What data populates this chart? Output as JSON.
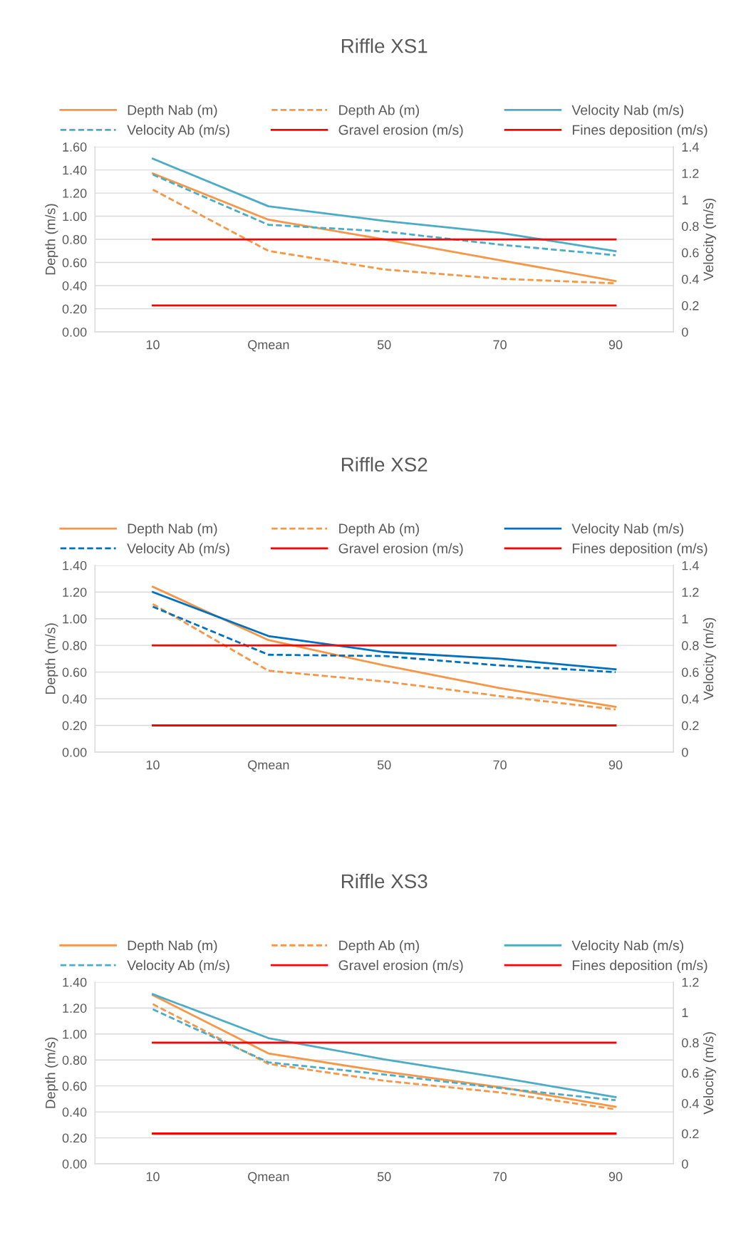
{
  "chart_data": [
    {
      "type": "line",
      "title": "Riffle XS1",
      "ylabel": "Depth (m/s)",
      "y2label": "Velocity (m/s)",
      "categories": [
        "10",
        "Qmean",
        "50",
        "70",
        "90"
      ],
      "grid": "y",
      "legend": "top",
      "ylim": [
        0,
        1.6
      ],
      "yticks": [
        {
          "value": 0,
          "label": "0.00"
        },
        {
          "value": 0.2,
          "label": "0.20"
        },
        {
          "value": 0.4,
          "label": "0.40"
        },
        {
          "value": 0.6,
          "label": "0.60"
        },
        {
          "value": 0.8,
          "label": "0.80"
        },
        {
          "value": 1.0,
          "label": "1.00"
        },
        {
          "value": 1.2,
          "label": "1.20"
        },
        {
          "value": 1.4,
          "label": "1.40"
        },
        {
          "value": 1.6,
          "label": "1.60"
        }
      ],
      "y2lim": [
        0,
        1.4
      ],
      "y2ticks": [
        0,
        0.2,
        0.4,
        0.6,
        0.8,
        1,
        1.2,
        1.4
      ],
      "series": [
        {
          "name": "Depth Nab (m)",
          "color": "#f79646",
          "line_style": "solid",
          "values": [
            1.37,
            0.97,
            0.8,
            0.62,
            0.44
          ]
        },
        {
          "name": "Depth Ab (m)",
          "color": "#f79646",
          "line_style": "dashed",
          "values": [
            1.23,
            0.7,
            0.54,
            0.46,
            0.42
          ]
        },
        {
          "name": "Velocity Nab (m/s)",
          "color": "#4bacc6",
          "line_style": "solid",
          "axis": "y2",
          "values": [
            1.31,
            0.95,
            0.84,
            0.75,
            0.61
          ]
        },
        {
          "name": "Velocity Ab (m/s)",
          "color": "#4bacc6",
          "line_style": "dashed",
          "axis": "y2",
          "values": [
            1.19,
            0.81,
            0.76,
            0.66,
            0.58
          ]
        },
        {
          "name": "Gravel erosion (m/s)",
          "color": "#ff0000",
          "line_style": "solid",
          "axis": "y2",
          "values": [
            0.7,
            0.7,
            0.7,
            0.7,
            0.7
          ]
        },
        {
          "name": "Fines deposition (m/s)",
          "color": "#ff0000",
          "line_style": "solid",
          "axis": "y2",
          "values": [
            0.2,
            0.2,
            0.2,
            0.2,
            0.2
          ]
        }
      ]
    },
    {
      "type": "line",
      "title": "Riffle XS2",
      "ylabel": "Depth (m/s)",
      "y2label": "Velocity (m/s)",
      "categories": [
        "10",
        "Qmean",
        "50",
        "70",
        "90"
      ],
      "grid": "y",
      "legend": "top",
      "ylim": [
        0,
        1.4
      ],
      "yticks": [
        {
          "value": 0,
          "label": "0.00"
        },
        {
          "value": 0.2,
          "label": "0.20"
        },
        {
          "value": 0.4,
          "label": "0.40"
        },
        {
          "value": 0.6,
          "label": "0.60"
        },
        {
          "value": 0.8,
          "label": "0.80"
        },
        {
          "value": 1.0,
          "label": "1.00"
        },
        {
          "value": 1.2,
          "label": "1.20"
        },
        {
          "value": 1.4,
          "label": "1.40"
        }
      ],
      "y2lim": [
        0,
        1.4
      ],
      "y2ticks": [
        0,
        0.2,
        0.4,
        0.6,
        0.8,
        1,
        1.2,
        1.4
      ],
      "series": [
        {
          "name": "Depth Nab (m)",
          "color": "#f79646",
          "line_style": "solid",
          "values": [
            1.24,
            0.84,
            0.65,
            0.48,
            0.34
          ]
        },
        {
          "name": "Depth Ab (m)",
          "color": "#f79646",
          "line_style": "dashed",
          "values": [
            1.11,
            0.61,
            0.53,
            0.42,
            0.32
          ]
        },
        {
          "name": "Velocity Nab (m/s)",
          "color": "#0070c0",
          "line_style": "solid",
          "axis": "y2",
          "values": [
            1.2,
            0.87,
            0.75,
            0.7,
            0.62
          ]
        },
        {
          "name": "Velocity Ab (m/s)",
          "color": "#0070c0",
          "line_style": "dashed",
          "axis": "y2",
          "values": [
            1.09,
            0.73,
            0.72,
            0.65,
            0.6
          ]
        },
        {
          "name": "Gravel erosion (m/s)",
          "color": "#ff0000",
          "line_style": "solid",
          "axis": "y2",
          "values": [
            0.8,
            0.8,
            0.8,
            0.8,
            0.8
          ]
        },
        {
          "name": "Fines deposition (m/s)",
          "color": "#ff0000",
          "line_style": "solid",
          "axis": "y2",
          "values": [
            0.2,
            0.2,
            0.2,
            0.2,
            0.2
          ]
        }
      ]
    },
    {
      "type": "line",
      "title": "Riffle XS3",
      "ylabel": "Depth (m/s)",
      "y2label": "Velocity (m/s)",
      "categories": [
        "10",
        "Qmean",
        "50",
        "70",
        "90"
      ],
      "grid": "y",
      "legend": "top",
      "ylim": [
        0,
        1.4
      ],
      "yticks": [
        {
          "value": 0,
          "label": "0.00"
        },
        {
          "value": 0.2,
          "label": "0.20"
        },
        {
          "value": 0.4,
          "label": "0.40"
        },
        {
          "value": 0.6,
          "label": "0.60"
        },
        {
          "value": 0.8,
          "label": "0.80"
        },
        {
          "value": 1.0,
          "label": "1.00"
        },
        {
          "value": 1.2,
          "label": "1.20"
        },
        {
          "value": 1.4,
          "label": "1.40"
        }
      ],
      "y2lim": [
        0,
        1.2
      ],
      "y2ticks": [
        0,
        0.2,
        0.4,
        0.6,
        0.8,
        1,
        1.2
      ],
      "series": [
        {
          "name": "Depth Nab (m)",
          "color": "#f79646",
          "line_style": "solid",
          "values": [
            1.3,
            0.85,
            0.71,
            0.59,
            0.44
          ]
        },
        {
          "name": "Depth Ab (m)",
          "color": "#f79646",
          "line_style": "dashed",
          "values": [
            1.23,
            0.77,
            0.64,
            0.55,
            0.42
          ]
        },
        {
          "name": "Velocity Nab (m/s)",
          "color": "#4bacc6",
          "line_style": "solid",
          "axis": "y2",
          "values": [
            1.12,
            0.83,
            0.69,
            0.57,
            0.44
          ]
        },
        {
          "name": "Velocity Ab (m/s)",
          "color": "#4bacc6",
          "line_style": "dashed",
          "axis": "y2",
          "values": [
            1.02,
            0.67,
            0.59,
            0.5,
            0.42
          ]
        },
        {
          "name": "Gravel erosion (m/s)",
          "color": "#ff0000",
          "line_style": "solid",
          "axis": "y2",
          "values": [
            0.8,
            0.8,
            0.8,
            0.8,
            0.8
          ]
        },
        {
          "name": "Fines deposition (m/s)",
          "color": "#ff0000",
          "line_style": "solid",
          "axis": "y2",
          "values": [
            0.2,
            0.2,
            0.2,
            0.2,
            0.2
          ]
        }
      ]
    }
  ]
}
